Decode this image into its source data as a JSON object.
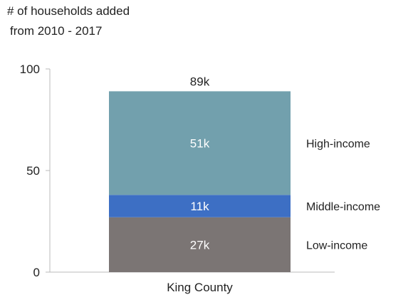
{
  "chart_data": {
    "type": "bar",
    "stacked": true,
    "title_lines": [
      "# of households added",
      "from 2010 - 2017"
    ],
    "categories": [
      "King County"
    ],
    "ylim": [
      0,
      100
    ],
    "yticks": [
      {
        "value": 0,
        "label": "0"
      },
      {
        "value": 50,
        "label": "50"
      },
      {
        "value": 100,
        "label": "100"
      }
    ],
    "total": {
      "value": 89,
      "label": "89k"
    },
    "series": [
      {
        "name": "Low-income",
        "values": [
          27
        ],
        "label": "27k",
        "color": "#7b7574"
      },
      {
        "name": "Middle-income",
        "values": [
          11
        ],
        "label": "11k",
        "color": "#3d6fc4"
      },
      {
        "name": "High-income",
        "values": [
          51
        ],
        "label": "51k",
        "color": "#72a0ad"
      }
    ],
    "grid": false,
    "legend": "right"
  }
}
